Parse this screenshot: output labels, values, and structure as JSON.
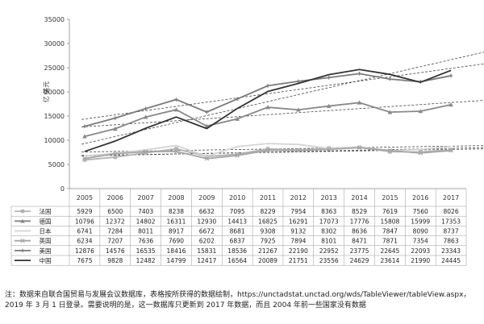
{
  "chart_data": {
    "type": "line",
    "ylabel": "亿 美元",
    "ylim": [
      0,
      35000
    ],
    "yticks": [
      0,
      5000,
      10000,
      15000,
      20000,
      25000,
      30000,
      35000
    ],
    "categories": [
      "2005",
      "2006",
      "2007",
      "2008",
      "2009",
      "2010",
      "2011",
      "2012",
      "2013",
      "2014",
      "2015",
      "2016",
      "2017"
    ],
    "trendlines": true,
    "legend_placement": "table-left",
    "series": [
      {
        "name": "法国",
        "color": "#b3b3b3",
        "marker": "square",
        "values": [
          5929,
          6500,
          7403,
          8238,
          6632,
          7095,
          8229,
          7954,
          8363,
          8529,
          7619,
          7560,
          8026
        ]
      },
      {
        "name": "德国",
        "color": "#888888",
        "marker": "triangle",
        "values": [
          10796,
          12372,
          14802,
          16311,
          12930,
          14413,
          16825,
          16291,
          17073,
          17776,
          15808,
          15999,
          17353
        ]
      },
      {
        "name": "日本",
        "color": "#d4d4d4",
        "marker": "none",
        "values": [
          6741,
          7284,
          8011,
          8917,
          6672,
          8681,
          9308,
          9132,
          8302,
          8636,
          7847,
          8090,
          8737
        ]
      },
      {
        "name": "英国",
        "color": "#a6a6a6",
        "marker": "x",
        "values": [
          6234,
          7207,
          7636,
          7690,
          6202,
          6837,
          7925,
          7894,
          8101,
          8471,
          7871,
          7354,
          7863
        ]
      },
      {
        "name": "美国",
        "color": "#7a7a7a",
        "marker": "plus",
        "values": [
          12876,
          14576,
          16535,
          18416,
          15831,
          18536,
          21267,
          22190,
          22952,
          23775,
          22645,
          22093,
          23343
        ]
      },
      {
        "name": "中国",
        "color": "#333333",
        "marker": "none",
        "values": [
          7675,
          9828,
          12482,
          14799,
          12417,
          16564,
          20089,
          21751,
          23556,
          24629,
          23614,
          21990,
          24445
        ]
      }
    ]
  },
  "note": "注：数据来自联合国贸易与发展会议数据库，表格按所获得的数据绘制，https://unctadstat.unctad.org/wds/TableViewer/tableView.aspx，2019 年 3 月 1 日登录。需要说明的是，这一数据库只更新到 2017 年数据，而且 2004 年前一些国家没有数据"
}
